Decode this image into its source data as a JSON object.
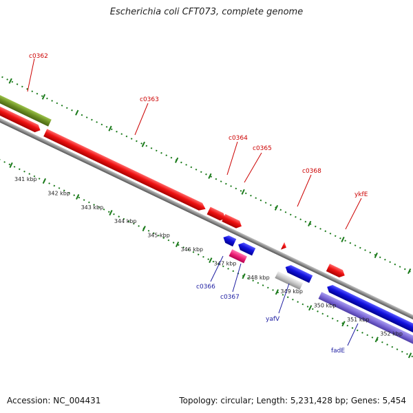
{
  "title": "Escherichia coli CFT073, complete genome",
  "footer": {
    "accession": "Accession: NC_004431",
    "summary": "Topology: circular; Length: 5,231,428 bp; Genes: 5,454"
  },
  "colors": {
    "forward_gene": "#ee1111",
    "reverse_gene": "#1111dd",
    "forward_label": "#cc0000",
    "reverse_label": "#1a1aa0",
    "olive_feature": "#6b8e23",
    "pink_feature": "#ee2277",
    "grey_feature": "#c8c8c8",
    "lavender_feature": "#7b68d6",
    "backbone": "#8c8c8c",
    "tick": "#1a7a1a"
  },
  "scale": {
    "ticks": [
      "341 kbp",
      "342 kbp",
      "343 kbp",
      "344 kbp",
      "345 kbp",
      "346 kbp",
      "347 kbp",
      "348 kbp",
      "349 kbp",
      "350 kbp",
      "351 kbp",
      "352 kbp"
    ]
  },
  "genes": [
    {
      "name": "c0362",
      "strand": "forward",
      "color": "olive_feature"
    },
    {
      "name": "c0363",
      "strand": "forward",
      "color": "forward_gene"
    },
    {
      "name": "c0364",
      "strand": "forward",
      "color": "forward_gene"
    },
    {
      "name": "c0365",
      "strand": "forward",
      "color": "forward_gene"
    },
    {
      "name": "c0368",
      "strand": "forward",
      "color": "forward_gene"
    },
    {
      "name": "ykfE",
      "strand": "forward",
      "color": "forward_gene"
    },
    {
      "name": "c0366",
      "strand": "reverse",
      "color": "reverse_gene"
    },
    {
      "name": "c0367",
      "strand": "reverse",
      "color": "pink_feature"
    },
    {
      "name": "yafV",
      "strand": "reverse",
      "color": "reverse_gene"
    },
    {
      "name": "fadE",
      "strand": "reverse",
      "color": "reverse_gene"
    }
  ]
}
